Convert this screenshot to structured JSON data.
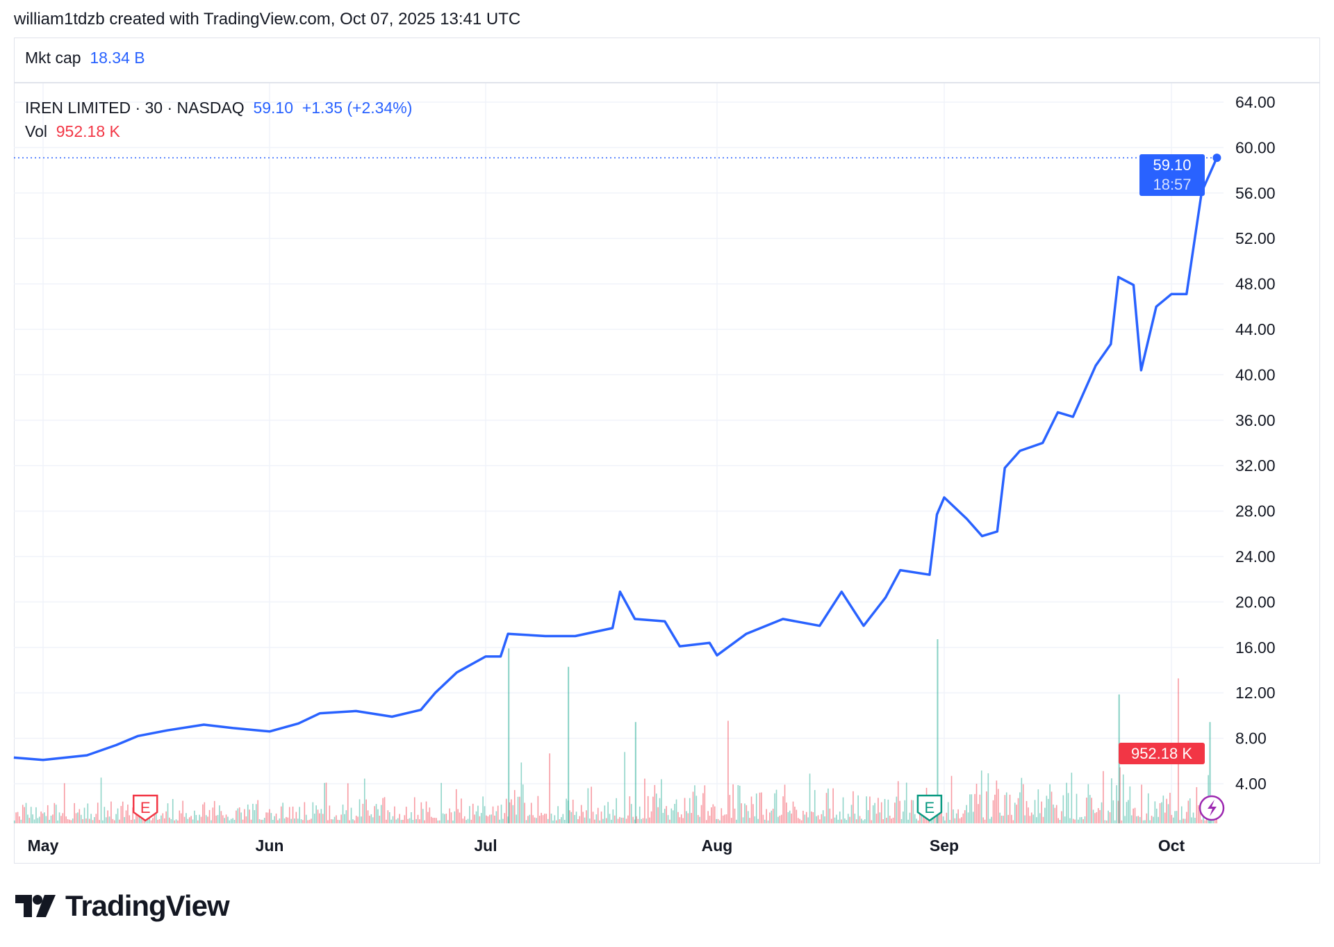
{
  "caption": "william1tdzb created with TradingView.com, Oct 07, 2025 13:41 UTC",
  "mkt_cap": {
    "label": "Mkt cap",
    "value": "18.34 B"
  },
  "legend": {
    "symbol": "IREN LIMITED · 30 · NASDAQ",
    "price": "59.10",
    "change": "+1.35 (+2.34%)",
    "vol_label": "Vol",
    "vol_value": "952.18 K"
  },
  "price_tag": {
    "price": "59.10",
    "countdown": "18:57"
  },
  "volume_tag": "952.18 K",
  "logo_text": "TradingView",
  "colors": {
    "line": "#2962ff",
    "up": "#22ab94",
    "down": "#f23645",
    "grid": "#f0f3fa"
  },
  "chart_data": {
    "type": "line",
    "title": "IREN LIMITED · 30 · NASDAQ",
    "ylim": [
      2,
      66
    ],
    "yticks": [
      "64.00",
      "60.00",
      "56.00",
      "52.00",
      "48.00",
      "44.00",
      "40.00",
      "36.00",
      "32.00",
      "28.00",
      "24.00",
      "20.00",
      "16.00",
      "12.00",
      "8.00",
      "4.00"
    ],
    "xticks": [
      "May",
      "Jun",
      "Jul",
      "Aug",
      "Sep",
      "Oct"
    ],
    "series": [
      {
        "name": "IREN price",
        "points": [
          [
            "04-27",
            6.3
          ],
          [
            "05-01",
            6.1
          ],
          [
            "05-07",
            6.5
          ],
          [
            "05-11",
            7.4
          ],
          [
            "05-14",
            8.2
          ],
          [
            "05-18",
            8.7
          ],
          [
            "05-23",
            9.2
          ],
          [
            "05-27",
            8.9
          ],
          [
            "06-01",
            8.6
          ],
          [
            "06-05",
            9.3
          ],
          [
            "06-08",
            10.2
          ],
          [
            "06-13",
            10.4
          ],
          [
            "06-18",
            9.9
          ],
          [
            "06-22",
            10.5
          ],
          [
            "06-24",
            12.0
          ],
          [
            "06-27",
            13.8
          ],
          [
            "07-01",
            15.2
          ],
          [
            "07-03",
            15.2
          ],
          [
            "07-04",
            17.2
          ],
          [
            "07-09",
            17.0
          ],
          [
            "07-13",
            17.0
          ],
          [
            "07-18",
            17.7
          ],
          [
            "07-19",
            20.9
          ],
          [
            "07-21",
            18.5
          ],
          [
            "07-25",
            18.3
          ],
          [
            "07-27",
            16.1
          ],
          [
            "07-31",
            16.4
          ],
          [
            "08-01",
            15.3
          ],
          [
            "08-05",
            17.2
          ],
          [
            "08-10",
            18.5
          ],
          [
            "08-15",
            17.9
          ],
          [
            "08-18",
            20.9
          ],
          [
            "08-21",
            17.9
          ],
          [
            "08-24",
            20.4
          ],
          [
            "08-26",
            22.8
          ],
          [
            "08-30",
            22.4
          ],
          [
            "08-31",
            27.7
          ],
          [
            "09-01",
            29.2
          ],
          [
            "09-04",
            27.3
          ],
          [
            "09-06",
            25.8
          ],
          [
            "09-08",
            26.2
          ],
          [
            "09-09",
            31.8
          ],
          [
            "09-11",
            33.3
          ],
          [
            "09-14",
            34.0
          ],
          [
            "09-16",
            36.7
          ],
          [
            "09-18",
            36.3
          ],
          [
            "09-21",
            40.8
          ],
          [
            "09-23",
            42.7
          ],
          [
            "09-24",
            48.6
          ],
          [
            "09-26",
            47.9
          ],
          [
            "09-27",
            40.4
          ],
          [
            "09-29",
            46.0
          ],
          [
            "10-01",
            47.1
          ],
          [
            "10-03",
            47.1
          ],
          [
            "10-04",
            51.6
          ],
          [
            "10-05",
            56.1
          ],
          [
            "10-07",
            59.1
          ]
        ]
      }
    ],
    "volume_spikes": [
      [
        "07-04",
        0.95
      ],
      [
        "07-12",
        0.85
      ],
      [
        "07-21",
        0.55
      ],
      [
        "08-31",
        1.0
      ],
      [
        "09-24",
        0.7
      ],
      [
        "10-06",
        0.55
      ]
    ],
    "events": [
      {
        "type": "earnings",
        "date": "05-15",
        "label": "E",
        "color": "#f23645"
      },
      {
        "type": "earnings",
        "date": "08-30",
        "label": "E",
        "color": "#089981"
      }
    ],
    "last_price": 59.1,
    "last_volume": "952.18 K"
  }
}
